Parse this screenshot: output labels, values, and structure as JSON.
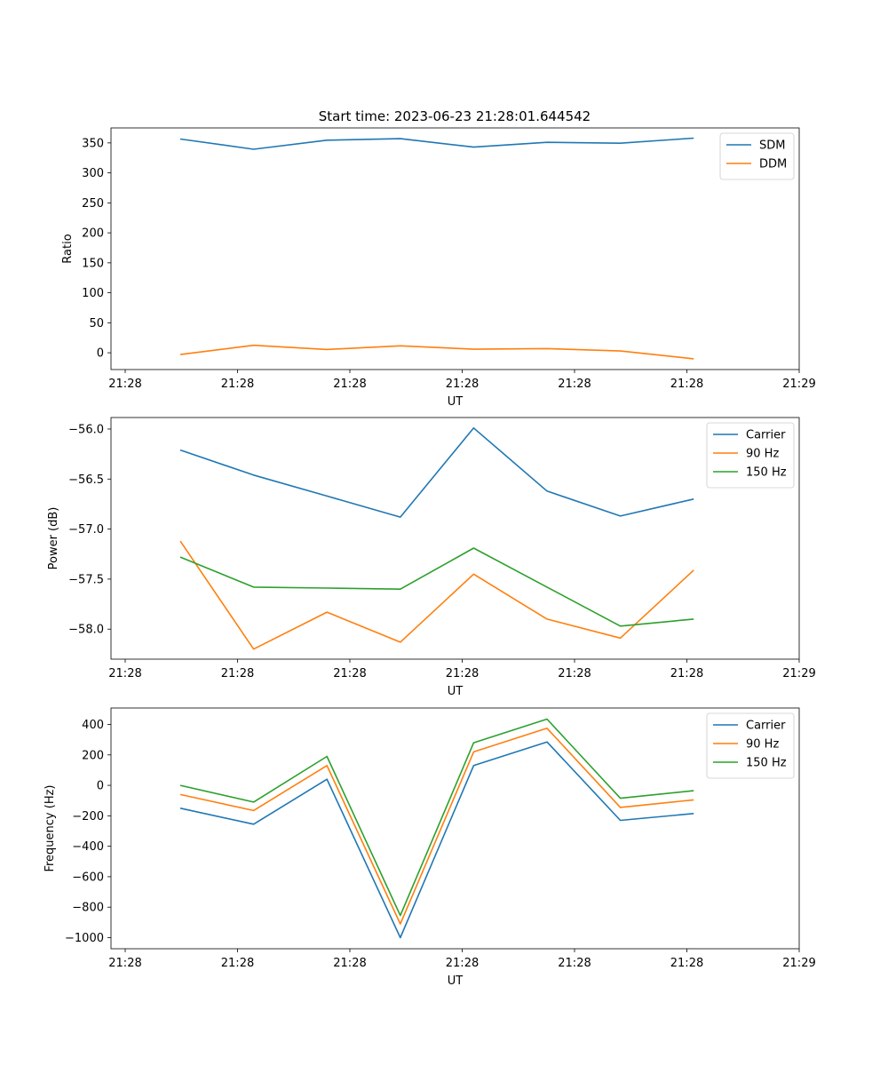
{
  "figure": {
    "title": "Start time: 2023-06-23 21:28:01.644542"
  },
  "colors": {
    "blue": "#1f77b4",
    "orange": "#ff7f0e",
    "green": "#2ca02c",
    "axis": "#000000",
    "legend_border": "#cccccc"
  },
  "chart_data": [
    {
      "type": "line",
      "title": "Start time: 2023-06-23 21:28:01.644542",
      "xlabel": "UT",
      "ylabel": "Ratio",
      "x_tick_labels": [
        "21:28",
        "21:28",
        "21:28",
        "21:28",
        "21:28",
        "21:28",
        "21:29"
      ],
      "y_ticks": [
        0,
        50,
        100,
        150,
        200,
        250,
        300,
        350
      ],
      "ylim": [
        -28,
        375
      ],
      "grid": false,
      "legend_position": "upper right",
      "series": [
        {
          "name": "SDM",
          "color": "#1f77b4",
          "values": [
            356.5,
            339.5,
            354.5,
            357.0,
            343.0,
            351.0,
            349.5,
            358.0
          ]
        },
        {
          "name": "DDM",
          "color": "#ff7f0e",
          "values": [
            -3.0,
            12.5,
            5.5,
            11.5,
            6.0,
            7.0,
            3.0,
            -10.0
          ]
        }
      ]
    },
    {
      "type": "line",
      "title": "",
      "xlabel": "UT",
      "ylabel": "Power (dB)",
      "x_tick_labels": [
        "21:28",
        "21:28",
        "21:28",
        "21:28",
        "21:28",
        "21:28",
        "21:29"
      ],
      "y_ticks": [
        -58.0,
        -57.5,
        -57.0,
        -56.5,
        -56.0
      ],
      "y_tick_labels": [
        "−58.0",
        "−57.5",
        "−57.0",
        "−56.5",
        "−56.0"
      ],
      "ylim": [
        -58.3,
        -55.885
      ],
      "grid": false,
      "legend_position": "upper right",
      "series": [
        {
          "name": "Carrier",
          "color": "#1f77b4",
          "values": [
            -56.21,
            -56.46,
            -56.67,
            -56.88,
            -55.99,
            -56.62,
            -56.87,
            -56.7
          ]
        },
        {
          "name": "90 Hz",
          "color": "#ff7f0e",
          "values": [
            -57.12,
            -58.2,
            -57.83,
            -58.13,
            -57.45,
            -57.9,
            -58.09,
            -57.41
          ]
        },
        {
          "name": "150 Hz",
          "color": "#2ca02c",
          "values": [
            -57.28,
            -57.58,
            -57.59,
            -57.6,
            -57.19,
            -57.58,
            -57.97,
            -57.9
          ]
        }
      ]
    },
    {
      "type": "line",
      "title": "",
      "xlabel": "UT",
      "ylabel": "Frequency (Hz)",
      "x_tick_labels": [
        "21:28",
        "21:28",
        "21:28",
        "21:28",
        "21:28",
        "21:28",
        "21:29"
      ],
      "y_ticks": [
        -1000,
        -800,
        -600,
        -400,
        -200,
        0,
        200,
        400
      ],
      "y_tick_labels": [
        "−1000",
        "−800",
        "−600",
        "−400",
        "−200",
        "0",
        "200",
        "400"
      ],
      "ylim": [
        -1073,
        508
      ],
      "grid": false,
      "legend_position": "upper right",
      "series": [
        {
          "name": "Carrier",
          "color": "#1f77b4",
          "values": [
            -150,
            -255,
            40,
            -1000,
            130,
            285,
            -230,
            -185
          ]
        },
        {
          "name": "90 Hz",
          "color": "#ff7f0e",
          "values": [
            -60,
            -165,
            130,
            -910,
            220,
            375,
            -145,
            -95
          ]
        },
        {
          "name": "150 Hz",
          "color": "#2ca02c",
          "values": [
            0,
            -110,
            190,
            -855,
            280,
            435,
            -85,
            -35
          ]
        }
      ]
    }
  ]
}
